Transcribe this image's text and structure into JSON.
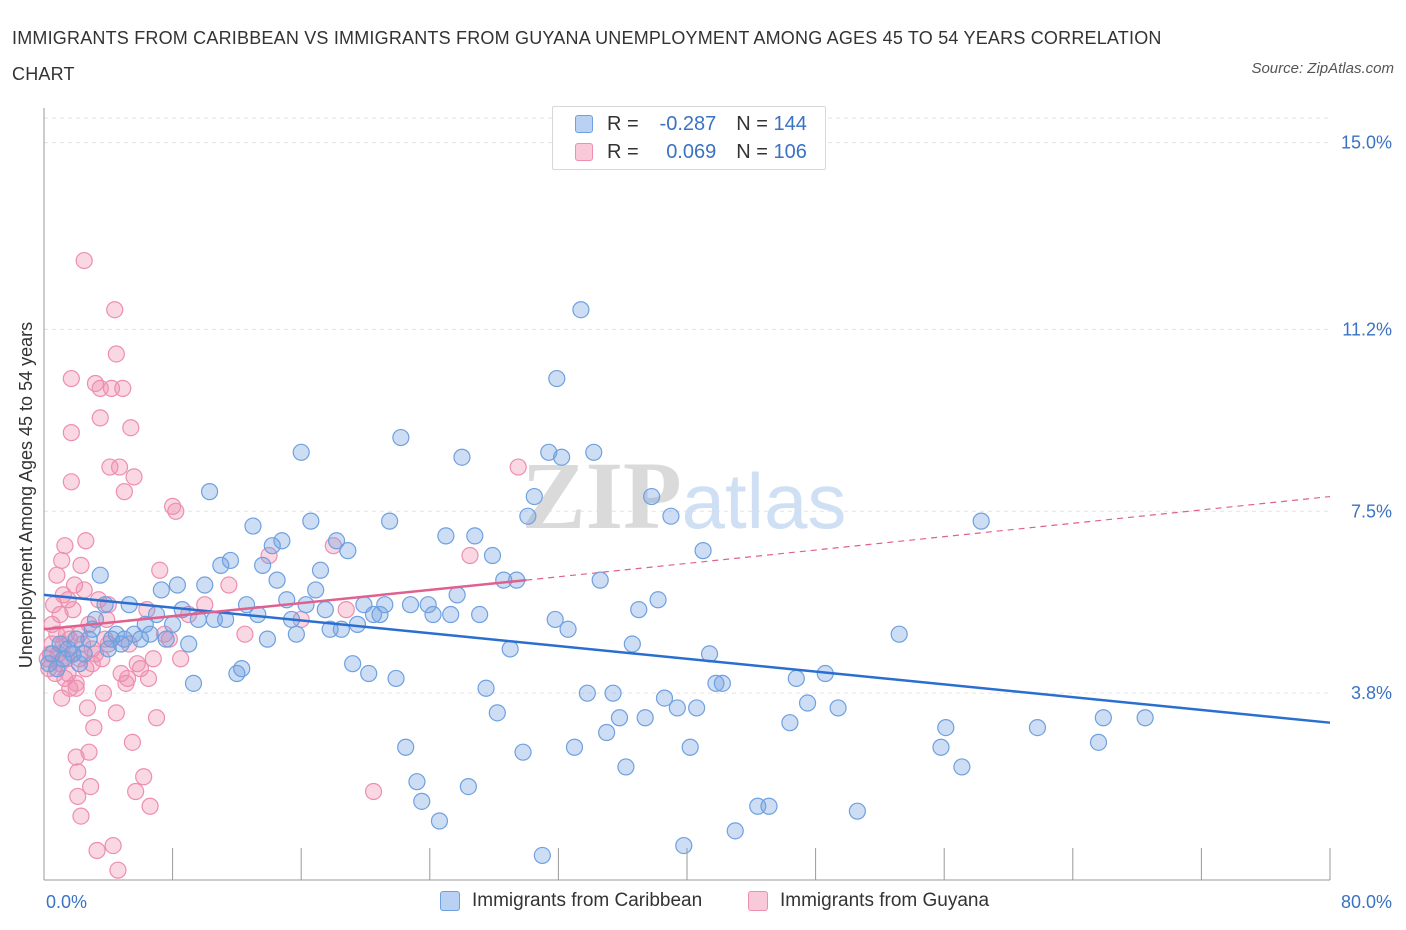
{
  "title": "IMMIGRANTS FROM CARIBBEAN VS IMMIGRANTS FROM GUYANA UNEMPLOYMENT AMONG AGES 45 TO 54 YEARS CORRELATION CHART",
  "source": "Source: ZipAtlas.com",
  "watermark": "ZIPatlas",
  "legend": {
    "rows": [
      {
        "r_label": "R =",
        "r_value": "-0.287",
        "n_label": "N =",
        "n_value": "144"
      },
      {
        "r_label": "R =",
        "r_value": "0.069",
        "n_label": "N =",
        "n_value": "106"
      }
    ]
  },
  "colors": {
    "caribbean": "#6fa0e0",
    "guyana": "#ee8eb0",
    "caribbean_line": "#2a6fd0",
    "guyana_line": "#e0608e",
    "tick_text": "#3a72c4"
  },
  "chart_data": {
    "type": "scatter",
    "title": "IMMIGRANTS FROM CARIBBEAN VS IMMIGRANTS FROM GUYANA UNEMPLOYMENT AMONG AGES 45 TO 54 YEARS CORRELATION CHART",
    "xlabel": "",
    "ylabel": "Unemployment Among Ages 45 to 54 years",
    "xlim": [
      0,
      80
    ],
    "ylim": [
      0,
      15.5
    ],
    "x_tick_labels": [
      "0.0%",
      "80.0%"
    ],
    "y_ticks": [
      3.8,
      7.5,
      11.2,
      15.0
    ],
    "y_tick_labels": [
      "3.8%",
      "7.5%",
      "11.2%",
      "15.0%"
    ],
    "grid": true,
    "legend_position": "top-center",
    "series": [
      {
        "name": "Immigrants from Caribbean",
        "color": "#6fa0e0",
        "trend": {
          "x0": 0,
          "y0": 5.8,
          "x1": 80,
          "y1": 3.2
        },
        "points": [
          [
            0.3,
            4.4
          ],
          [
            0.5,
            4.6
          ],
          [
            0.8,
            4.3
          ],
          [
            1.0,
            4.8
          ],
          [
            1.2,
            4.5
          ],
          [
            1.5,
            4.7
          ],
          [
            1.8,
            4.6
          ],
          [
            2.0,
            4.9
          ],
          [
            2.2,
            4.4
          ],
          [
            2.5,
            4.6
          ],
          [
            2.8,
            4.9
          ],
          [
            3.0,
            5.1
          ],
          [
            3.2,
            5.3
          ],
          [
            3.5,
            6.2
          ],
          [
            3.8,
            5.6
          ],
          [
            4.0,
            4.7
          ],
          [
            4.2,
            4.9
          ],
          [
            4.5,
            5.0
          ],
          [
            4.8,
            4.8
          ],
          [
            5.0,
            4.9
          ],
          [
            5.3,
            5.6
          ],
          [
            5.6,
            5.0
          ],
          [
            6.0,
            4.9
          ],
          [
            6.3,
            5.2
          ],
          [
            6.6,
            5.0
          ],
          [
            7.0,
            5.4
          ],
          [
            7.3,
            5.9
          ],
          [
            7.6,
            4.9
          ],
          [
            8.0,
            5.2
          ],
          [
            8.3,
            6.0
          ],
          [
            8.6,
            5.5
          ],
          [
            9.0,
            4.8
          ],
          [
            9.3,
            4.0
          ],
          [
            9.6,
            5.3
          ],
          [
            10.0,
            6.0
          ],
          [
            10.3,
            7.9
          ],
          [
            10.6,
            5.3
          ],
          [
            11.0,
            6.4
          ],
          [
            11.3,
            5.3
          ],
          [
            11.6,
            6.5
          ],
          [
            12.0,
            4.2
          ],
          [
            12.3,
            4.3
          ],
          [
            12.6,
            5.6
          ],
          [
            13.0,
            7.2
          ],
          [
            13.3,
            5.4
          ],
          [
            13.6,
            6.4
          ],
          [
            13.9,
            4.9
          ],
          [
            14.2,
            6.8
          ],
          [
            14.5,
            6.1
          ],
          [
            14.8,
            6.9
          ],
          [
            15.1,
            5.7
          ],
          [
            15.4,
            5.3
          ],
          [
            15.7,
            5.0
          ],
          [
            16.0,
            8.7
          ],
          [
            16.3,
            5.6
          ],
          [
            16.6,
            7.3
          ],
          [
            16.9,
            5.9
          ],
          [
            17.2,
            6.3
          ],
          [
            17.5,
            5.5
          ],
          [
            17.8,
            5.1
          ],
          [
            18.2,
            6.9
          ],
          [
            18.5,
            5.1
          ],
          [
            18.9,
            6.7
          ],
          [
            19.2,
            4.4
          ],
          [
            19.5,
            5.2
          ],
          [
            19.9,
            5.6
          ],
          [
            20.2,
            4.2
          ],
          [
            20.5,
            5.4
          ],
          [
            20.9,
            5.4
          ],
          [
            21.2,
            5.6
          ],
          [
            21.5,
            7.3
          ],
          [
            21.9,
            4.1
          ],
          [
            22.2,
            9.0
          ],
          [
            22.5,
            2.7
          ],
          [
            22.8,
            5.6
          ],
          [
            23.2,
            2.0
          ],
          [
            23.5,
            1.6
          ],
          [
            23.9,
            5.6
          ],
          [
            24.2,
            5.4
          ],
          [
            24.6,
            1.2
          ],
          [
            25.0,
            7.0
          ],
          [
            25.3,
            5.4
          ],
          [
            25.7,
            5.8
          ],
          [
            26.0,
            8.6
          ],
          [
            26.4,
            1.9
          ],
          [
            26.8,
            7.0
          ],
          [
            27.1,
            5.4
          ],
          [
            27.5,
            3.9
          ],
          [
            27.9,
            6.6
          ],
          [
            28.2,
            3.4
          ],
          [
            28.6,
            6.1
          ],
          [
            29.0,
            4.7
          ],
          [
            29.4,
            6.1
          ],
          [
            29.8,
            2.6
          ],
          [
            30.1,
            7.4
          ],
          [
            30.5,
            7.8
          ],
          [
            31.0,
            0.5
          ],
          [
            31.4,
            8.7
          ],
          [
            31.8,
            5.3
          ],
          [
            32.2,
            8.6
          ],
          [
            32.6,
            5.1
          ],
          [
            33.0,
            2.7
          ],
          [
            33.4,
            11.6
          ],
          [
            33.8,
            3.8
          ],
          [
            34.2,
            8.7
          ],
          [
            34.6,
            6.1
          ],
          [
            35.0,
            3.0
          ],
          [
            35.4,
            3.8
          ],
          [
            35.8,
            3.3
          ],
          [
            36.2,
            2.3
          ],
          [
            36.6,
            4.8
          ],
          [
            37.0,
            5.5
          ],
          [
            37.4,
            3.3
          ],
          [
            37.8,
            7.8
          ],
          [
            38.2,
            5.7
          ],
          [
            38.6,
            3.7
          ],
          [
            39.0,
            7.4
          ],
          [
            39.4,
            3.5
          ],
          [
            39.8,
            0.7
          ],
          [
            40.2,
            2.7
          ],
          [
            40.6,
            3.5
          ],
          [
            41.0,
            6.7
          ],
          [
            41.4,
            4.6
          ],
          [
            41.8,
            4.0
          ],
          [
            42.2,
            4.0
          ],
          [
            43.0,
            1.0
          ],
          [
            44.4,
            1.5
          ],
          [
            45.1,
            1.5
          ],
          [
            46.4,
            3.2
          ],
          [
            46.8,
            4.1
          ],
          [
            47.5,
            3.6
          ],
          [
            48.6,
            4.2
          ],
          [
            49.4,
            3.5
          ],
          [
            50.6,
            1.4
          ],
          [
            53.2,
            5.0
          ],
          [
            55.8,
            2.7
          ],
          [
            56.1,
            3.1
          ],
          [
            57.1,
            2.3
          ],
          [
            58.3,
            7.3
          ],
          [
            61.8,
            3.1
          ],
          [
            65.6,
            2.8
          ],
          [
            65.9,
            3.3
          ],
          [
            68.5,
            3.3
          ],
          [
            31.9,
            10.2
          ]
        ]
      },
      {
        "name": "Immigrants from Guyana",
        "color": "#ee8eb0",
        "trend": {
          "x0": 0,
          "y0": 5.1,
          "x1": 30,
          "y1": 6.1,
          "dash_x1": 80,
          "dash_y1": 7.8
        },
        "points": [
          [
            0.2,
            4.5
          ],
          [
            0.3,
            4.3
          ],
          [
            0.4,
            4.6
          ],
          [
            0.5,
            4.8
          ],
          [
            0.5,
            5.2
          ],
          [
            0.6,
            5.6
          ],
          [
            0.7,
            4.2
          ],
          [
            0.8,
            5.0
          ],
          [
            0.8,
            6.2
          ],
          [
            0.9,
            4.6
          ],
          [
            1.0,
            4.4
          ],
          [
            1.0,
            5.4
          ],
          [
            1.1,
            3.7
          ],
          [
            1.1,
            6.5
          ],
          [
            1.2,
            5.8
          ],
          [
            1.2,
            4.8
          ],
          [
            1.3,
            4.1
          ],
          [
            1.3,
            6.8
          ],
          [
            1.4,
            5.0
          ],
          [
            1.4,
            4.5
          ],
          [
            1.5,
            4.2
          ],
          [
            1.5,
            5.7
          ],
          [
            1.6,
            4.9
          ],
          [
            1.6,
            3.9
          ],
          [
            1.7,
            8.1
          ],
          [
            1.7,
            9.1
          ],
          [
            1.7,
            10.2
          ],
          [
            1.8,
            5.5
          ],
          [
            1.8,
            4.6
          ],
          [
            1.9,
            6.0
          ],
          [
            2.0,
            4.0
          ],
          [
            2.0,
            3.9
          ],
          [
            2.0,
            2.5
          ],
          [
            2.1,
            2.2
          ],
          [
            2.1,
            1.7
          ],
          [
            2.2,
            5.0
          ],
          [
            2.2,
            4.5
          ],
          [
            2.3,
            1.3
          ],
          [
            2.3,
            6.4
          ],
          [
            2.4,
            4.8
          ],
          [
            2.5,
            12.6
          ],
          [
            2.5,
            5.9
          ],
          [
            2.6,
            4.3
          ],
          [
            2.6,
            6.9
          ],
          [
            2.7,
            3.5
          ],
          [
            2.8,
            5.2
          ],
          [
            2.8,
            2.6
          ],
          [
            2.9,
            1.9
          ],
          [
            3.0,
            4.7
          ],
          [
            3.0,
            4.4
          ],
          [
            3.1,
            3.1
          ],
          [
            3.2,
            10.1
          ],
          [
            3.2,
            4.6
          ],
          [
            3.3,
            0.6
          ],
          [
            3.4,
            5.7
          ],
          [
            3.5,
            10.0
          ],
          [
            3.5,
            9.4
          ],
          [
            3.6,
            4.5
          ],
          [
            3.7,
            3.8
          ],
          [
            3.8,
            4.9
          ],
          [
            3.9,
            5.3
          ],
          [
            4.0,
            5.6
          ],
          [
            4.0,
            4.8
          ],
          [
            4.1,
            8.4
          ],
          [
            4.2,
            10.0
          ],
          [
            4.3,
            0.7
          ],
          [
            4.4,
            11.6
          ],
          [
            4.5,
            3.4
          ],
          [
            4.5,
            10.7
          ],
          [
            4.6,
            0.2
          ],
          [
            4.7,
            8.4
          ],
          [
            4.8,
            4.2
          ],
          [
            4.9,
            10.0
          ],
          [
            5.0,
            7.9
          ],
          [
            5.1,
            4.0
          ],
          [
            5.2,
            4.1
          ],
          [
            5.3,
            4.8
          ],
          [
            5.4,
            9.2
          ],
          [
            5.5,
            2.8
          ],
          [
            5.6,
            8.2
          ],
          [
            5.7,
            1.8
          ],
          [
            5.8,
            4.4
          ],
          [
            6.0,
            4.3
          ],
          [
            6.2,
            2.1
          ],
          [
            6.4,
            5.5
          ],
          [
            6.5,
            4.1
          ],
          [
            6.6,
            1.5
          ],
          [
            6.8,
            4.5
          ],
          [
            7.0,
            3.3
          ],
          [
            7.2,
            6.3
          ],
          [
            7.5,
            5.0
          ],
          [
            7.8,
            4.9
          ],
          [
            8.0,
            7.6
          ],
          [
            8.2,
            7.5
          ],
          [
            8.5,
            4.5
          ],
          [
            9.0,
            5.4
          ],
          [
            10.0,
            5.6
          ],
          [
            11.5,
            6.0
          ],
          [
            12.5,
            5.0
          ],
          [
            14.0,
            6.6
          ],
          [
            16.0,
            5.3
          ],
          [
            18.0,
            6.8
          ],
          [
            18.8,
            5.5
          ],
          [
            20.5,
            1.8
          ],
          [
            26.5,
            6.6
          ],
          [
            29.5,
            8.4
          ]
        ]
      }
    ]
  },
  "bottom_legend": [
    {
      "label": "Immigrants from Caribbean"
    },
    {
      "label": "Immigrants from Guyana"
    }
  ]
}
